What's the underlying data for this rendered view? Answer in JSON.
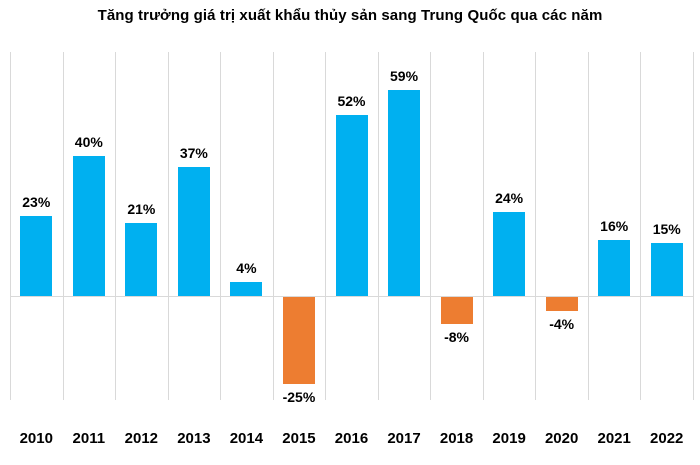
{
  "chart_data": {
    "type": "bar",
    "title": "Tăng trưởng giá trị xuất khẩu thủy sản sang Trung Quốc qua các năm",
    "categories": [
      "2010",
      "2011",
      "2012",
      "2013",
      "2014",
      "2015",
      "2016",
      "2017",
      "2018",
      "2019",
      "2020",
      "2021",
      "2022"
    ],
    "values": [
      23,
      40,
      21,
      37,
      4,
      -25,
      52,
      59,
      -8,
      24,
      -4,
      16,
      15
    ],
    "labels": [
      "23%",
      "40%",
      "21%",
      "37%",
      "4%",
      "-25%",
      "52%",
      "59%",
      "-8%",
      "24%",
      "-4%",
      "16%",
      "15%"
    ],
    "xlabel": "",
    "ylabel": "",
    "ylim": [
      -30,
      70
    ],
    "grid": "vertical-only",
    "legend": "none",
    "data_label_position": "outside-end",
    "colors": {
      "positive_bar": "#00B0F0",
      "negative_bar": "#ED7D31",
      "gridline": "#D9D9D9",
      "zero_line": "#D9D9D9",
      "label_text": "#000000",
      "title_text": "#000000",
      "background": "#FFFFFF"
    }
  }
}
